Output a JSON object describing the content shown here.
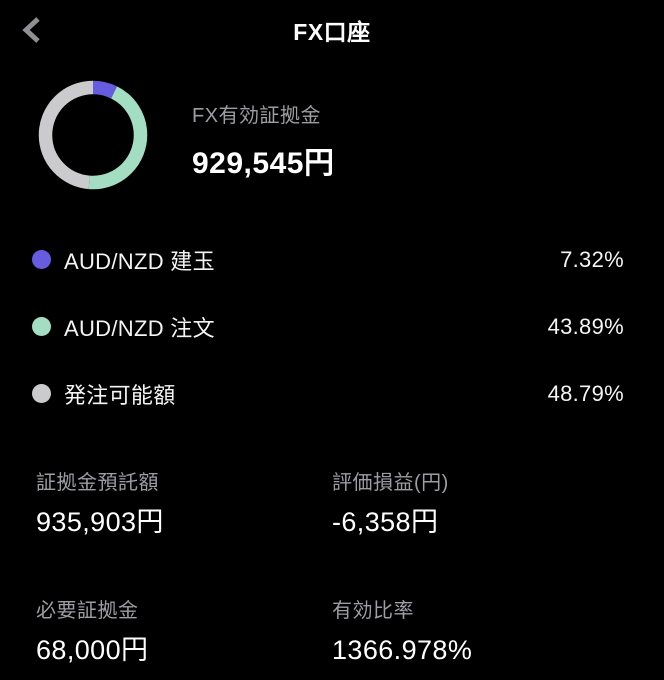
{
  "header": {
    "title": "FX口座"
  },
  "summary": {
    "label": "FX有効証拠金",
    "value": "929,545円"
  },
  "legend": [
    {
      "name": "AUD/NZD 建玉",
      "percent": "7.32%",
      "color": "#675ce0"
    },
    {
      "name": "AUD/NZD 注文",
      "percent": "43.89%",
      "color": "#a3dec2"
    },
    {
      "name": "発注可能額",
      "percent": "48.79%",
      "color": "#cbcbcd"
    }
  ],
  "stats": [
    {
      "label": "証拠金預託額",
      "value": "935,903円"
    },
    {
      "label": "評価損益(円)",
      "value": "-6,358円"
    },
    {
      "label": "必要証拠金",
      "value": "68,000円"
    },
    {
      "label": "有効比率",
      "value": "1366.978%"
    }
  ],
  "chart_data": {
    "type": "pie",
    "donut": true,
    "title": "FX有効証拠金",
    "center_total": "929,545円",
    "categories": [
      "AUD/NZD 建玉",
      "AUD/NZD 注文",
      "発注可能額"
    ],
    "values": [
      7.32,
      43.89,
      48.79
    ],
    "colors": [
      "#675ce0",
      "#a3dec2",
      "#cbcbcd"
    ],
    "start_angle_deg": 0,
    "direction": "clockwise",
    "legend_position": "below"
  },
  "colors": {
    "background": "#000000",
    "text_primary": "#ffffff",
    "text_secondary": "#9d9da3",
    "back_icon": "#8f8f94"
  }
}
